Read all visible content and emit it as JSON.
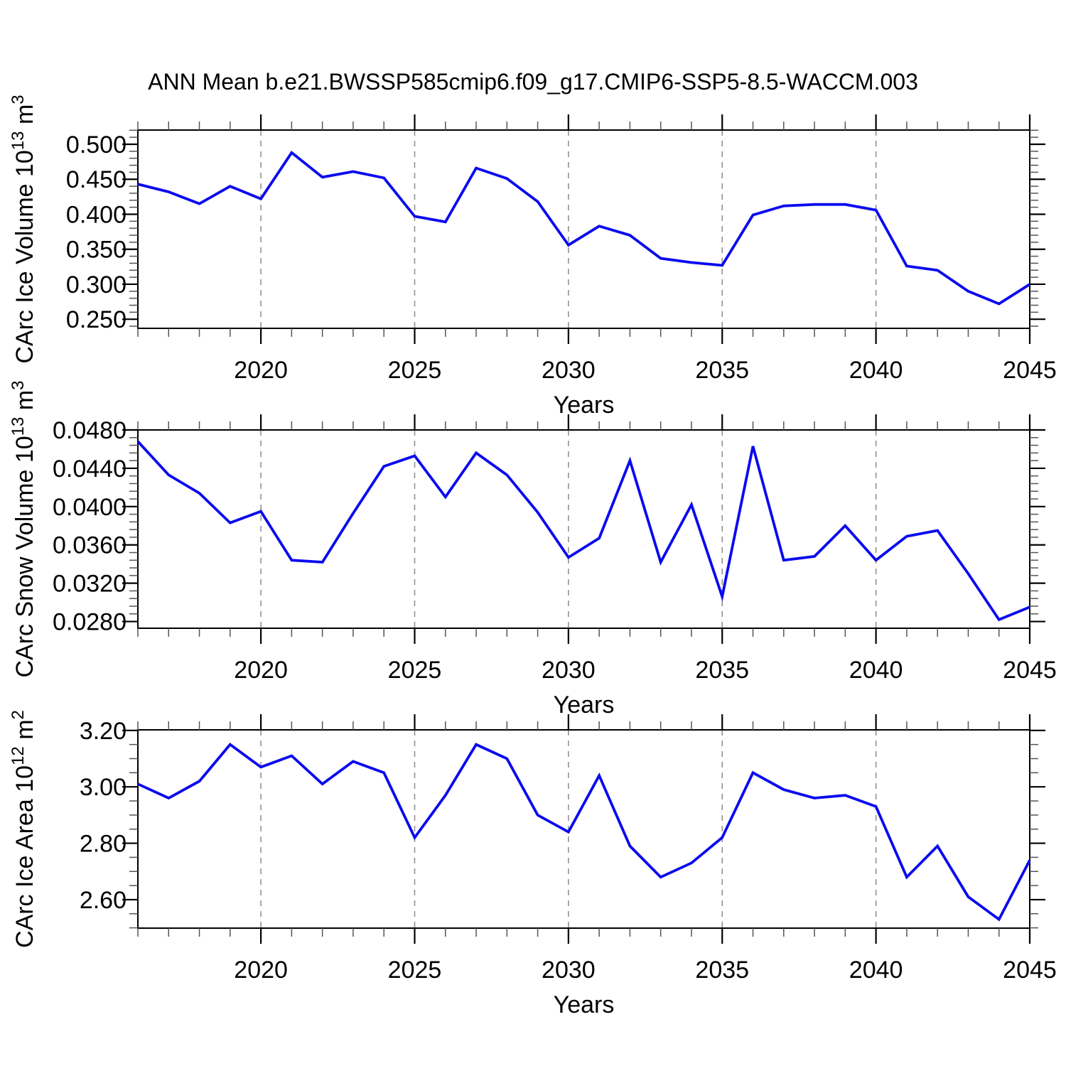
{
  "title": "ANN Mean b.e21.BWSSP585cmip6.f09_g17.CMIP6-SSP5-8.5-WACCM.003",
  "colors": {
    "line": "#0a0af0",
    "grid": "#919191",
    "axis": "#000000",
    "minor_tick": "#555555",
    "background": "#ffffff"
  },
  "xaxis": {
    "label": "Years",
    "xlim": [
      2016,
      2045
    ],
    "major_years": [
      2020,
      2025,
      2030,
      2035,
      2040,
      2045
    ],
    "major_labels": [
      "2020",
      "2025",
      "2030",
      "2035",
      "2040",
      "2045"
    ],
    "grid_years": [
      2020,
      2025,
      2030,
      2035,
      2040
    ],
    "minor_step": 1
  },
  "chart_data": [
    {
      "type": "line",
      "title": "",
      "ylabel_text": "CArc Ice Volume 10^13 m^3",
      "ylabel_parts": [
        {
          "t": "CArc Ice Volume 10",
          "sup": false
        },
        {
          "t": "13",
          "sup": true
        },
        {
          "t": " m",
          "sup": false
        },
        {
          "t": "3",
          "sup": true
        }
      ],
      "xlabel": "Years",
      "x": [
        2016,
        2017,
        2018,
        2019,
        2020,
        2021,
        2022,
        2023,
        2024,
        2025,
        2026,
        2027,
        2028,
        2029,
        2030,
        2031,
        2032,
        2033,
        2034,
        2035,
        2036,
        2037,
        2038,
        2039,
        2040,
        2041,
        2042,
        2043,
        2044,
        2045
      ],
      "values": [
        0.443,
        0.432,
        0.415,
        0.44,
        0.422,
        0.488,
        0.453,
        0.461,
        0.452,
        0.397,
        0.389,
        0.466,
        0.451,
        0.418,
        0.356,
        0.383,
        0.37,
        0.337,
        0.331,
        0.327,
        0.399,
        0.412,
        0.414,
        0.414,
        0.406,
        0.326,
        0.32,
        0.29,
        0.272,
        0.3
      ],
      "ylim": [
        0.237,
        0.5203
      ],
      "ytick_values": [
        0.25,
        0.3,
        0.35,
        0.4,
        0.45,
        0.5
      ],
      "ytick_labels": [
        "0.250",
        "0.300",
        "0.350",
        "0.400",
        "0.450",
        "0.500"
      ],
      "yminor_step": 0.01,
      "grid": "vertical-dashed"
    },
    {
      "type": "line",
      "title": "",
      "ylabel_text": "CArc Snow Volume 10^13 m^3",
      "ylabel_parts": [
        {
          "t": "CArc Snow Volume 10",
          "sup": false
        },
        {
          "t": "13",
          "sup": true
        },
        {
          "t": " m",
          "sup": false
        },
        {
          "t": "3",
          "sup": true
        }
      ],
      "xlabel": "Years",
      "x": [
        2016,
        2017,
        2018,
        2019,
        2020,
        2021,
        2022,
        2023,
        2024,
        2025,
        2026,
        2027,
        2028,
        2029,
        2030,
        2031,
        2032,
        2033,
        2034,
        2035,
        2036,
        2037,
        2038,
        2039,
        2040,
        2041,
        2042,
        2043,
        2044,
        2045
      ],
      "values": [
        0.0468,
        0.0433,
        0.0414,
        0.0383,
        0.0395,
        0.0344,
        0.0342,
        0.0393,
        0.0442,
        0.0453,
        0.041,
        0.0456,
        0.0433,
        0.0394,
        0.0347,
        0.0367,
        0.0448,
        0.0342,
        0.0402,
        0.0306,
        0.0463,
        0.0344,
        0.0348,
        0.038,
        0.0344,
        0.0369,
        0.0375,
        0.033,
        0.0282,
        0.0295
      ],
      "ylim": [
        0.0273,
        0.048
      ],
      "ytick_values": [
        0.028,
        0.032,
        0.036,
        0.04,
        0.044,
        0.048
      ],
      "ytick_labels": [
        "0.0280",
        "0.0320",
        "0.0360",
        "0.0400",
        "0.0440",
        "0.0480"
      ],
      "yminor_step": 0.0008,
      "grid": "vertical-dashed"
    },
    {
      "type": "line",
      "title": "",
      "ylabel_text": "CArc Ice Area 10^12 m^2",
      "ylabel_parts": [
        {
          "t": "CArc Ice Area 10",
          "sup": false
        },
        {
          "t": "12",
          "sup": true
        },
        {
          "t": " m",
          "sup": false
        },
        {
          "t": "2",
          "sup": true
        }
      ],
      "xlabel": "Years",
      "x": [
        2016,
        2017,
        2018,
        2019,
        2020,
        2021,
        2022,
        2023,
        2024,
        2025,
        2026,
        2027,
        2028,
        2029,
        2030,
        2031,
        2032,
        2033,
        2034,
        2035,
        2036,
        2037,
        2038,
        2039,
        2040,
        2041,
        2042,
        2043,
        2044,
        2045
      ],
      "values": [
        3.01,
        2.96,
        3.02,
        3.15,
        3.07,
        3.11,
        3.01,
        3.09,
        3.05,
        2.82,
        2.97,
        3.15,
        3.1,
        2.9,
        2.84,
        3.04,
        2.79,
        2.68,
        2.73,
        2.82,
        3.05,
        2.99,
        2.96,
        2.97,
        2.93,
        2.68,
        2.79,
        2.61,
        2.53,
        2.74
      ],
      "ylim": [
        2.499,
        3.202
      ],
      "ytick_values": [
        2.6,
        2.8,
        3.0,
        3.2
      ],
      "ytick_labels": [
        "2.60",
        "2.80",
        "3.00",
        "3.20"
      ],
      "yminor_step": 0.05,
      "grid": "vertical-dashed"
    }
  ]
}
